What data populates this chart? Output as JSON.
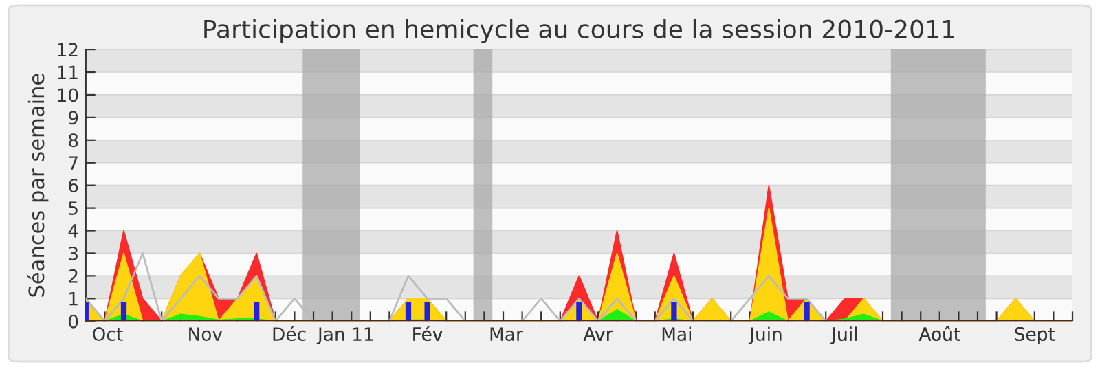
{
  "chart_data": {
    "type": "area",
    "title": "Participation en hemicycle au cours de la session 2010-2011",
    "ylabel": "Séances par semaine",
    "x": [
      "2010-09-27",
      "2010-10-04",
      "2010-10-11",
      "2010-10-18",
      "2010-10-25",
      "2010-11-01",
      "2010-11-08",
      "2010-11-15",
      "2010-11-22",
      "2010-11-29",
      "2010-12-06",
      "2010-12-13",
      "2010-12-20",
      "2010-12-27",
      "2011-01-03",
      "2011-01-10",
      "2011-01-17",
      "2011-01-24",
      "2011-01-31",
      "2011-02-07",
      "2011-02-14",
      "2011-02-21",
      "2011-02-28",
      "2011-03-07",
      "2011-03-14",
      "2011-03-21",
      "2011-03-28",
      "2011-04-04",
      "2011-04-11",
      "2011-04-18",
      "2011-04-25",
      "2011-05-02",
      "2011-05-09",
      "2011-05-16",
      "2011-05-23",
      "2011-05-30",
      "2011-06-06",
      "2011-06-13",
      "2011-06-20",
      "2011-06-27",
      "2011-07-04",
      "2011-07-11",
      "2011-07-18",
      "2011-07-25",
      "2011-08-01",
      "2011-08-08",
      "2011-08-15",
      "2011-08-22",
      "2011-08-29",
      "2011-09-05",
      "2011-09-12",
      "2011-09-19",
      "2011-09-26"
    ],
    "series": [
      {
        "color": "#ff2a2a",
        "values": [
          1,
          0,
          4,
          1,
          0,
          2,
          3,
          1,
          1,
          3,
          0,
          0,
          0,
          0,
          0,
          0,
          0,
          1,
          1,
          0,
          0,
          0,
          0,
          0,
          0,
          0,
          2,
          0,
          4,
          0,
          0,
          3,
          0,
          1,
          0,
          0,
          6,
          1,
          1,
          0,
          1,
          1,
          0,
          0,
          0,
          0,
          0,
          0,
          0,
          1,
          0,
          0,
          0
        ]
      },
      {
        "color": "#ffd510",
        "values": [
          1,
          0,
          3,
          0,
          0,
          2,
          3,
          0,
          1,
          2,
          0,
          0,
          0,
          0,
          0,
          0,
          0,
          1,
          1,
          0,
          0,
          0,
          0,
          0,
          0,
          0,
          1,
          0,
          3,
          0,
          0,
          2,
          0,
          1,
          0,
          0,
          5,
          0,
          1,
          0,
          0,
          1,
          0,
          0,
          0,
          0,
          0,
          0,
          0,
          1,
          0,
          0,
          0
        ]
      },
      {
        "color": "#22ee11",
        "values": [
          0,
          0,
          0.3,
          0,
          0,
          0.3,
          0.2,
          0.05,
          0.1,
          0.1,
          0,
          0,
          0,
          0,
          0,
          0,
          0,
          0.05,
          0.05,
          0,
          0,
          0,
          0,
          0,
          0,
          0,
          0.05,
          0,
          0.5,
          0,
          0,
          0.1,
          0,
          0,
          0,
          0,
          0.4,
          0,
          0.05,
          0,
          0.1,
          0.3,
          0,
          0,
          0,
          0,
          0,
          0,
          0,
          0.05,
          0,
          0,
          0
        ]
      },
      {
        "type": "line",
        "color": "#bbbbbb",
        "values": [
          1,
          0,
          1,
          3,
          0,
          1,
          2,
          1,
          1,
          2,
          0,
          1,
          0,
          0,
          0,
          0,
          0,
          2,
          1,
          1,
          0,
          0,
          0,
          0,
          1,
          0,
          1,
          0,
          1,
          0,
          0,
          1,
          0,
          0,
          0,
          1,
          2,
          1,
          1,
          0,
          0,
          0,
          0,
          0,
          0,
          0,
          0,
          0,
          0,
          0,
          0,
          0,
          0
        ]
      },
      {
        "type": "bar",
        "color": "#2222dd",
        "values": [
          0.85,
          0,
          0.85,
          0,
          0,
          0,
          0,
          0,
          0,
          0.85,
          0,
          0,
          0,
          0,
          0,
          0,
          0,
          0.85,
          0.85,
          0,
          0,
          0,
          0,
          0,
          0,
          0,
          0.85,
          0,
          0,
          0,
          0,
          0.85,
          0,
          0,
          0,
          0,
          0,
          0,
          0.85,
          0,
          0,
          0,
          0,
          0,
          0,
          0,
          0,
          0,
          0,
          0,
          0,
          0,
          0
        ]
      }
    ],
    "xlim": [
      "2010-09-27",
      "2011-09-26"
    ],
    "xticks": [
      {
        "value": "2010-09-27",
        "label": null
      },
      {
        "value": "2010-10-04",
        "label": null
      },
      {
        "value": "2010-10-11",
        "label": null
      },
      {
        "value": "2010-10-18",
        "label": null
      },
      {
        "value": "2010-10-25",
        "label": null
      },
      {
        "value": "2010-11-01",
        "label": null
      },
      {
        "value": "2010-11-08",
        "label": null
      },
      {
        "value": "2010-11-15",
        "label": null
      },
      {
        "value": "2010-11-22",
        "label": null
      },
      {
        "value": "2010-11-29",
        "label": null
      },
      {
        "value": "2010-12-06",
        "label": null
      },
      {
        "value": "2010-12-13",
        "label": null
      },
      {
        "value": "2010-12-20",
        "label": null
      },
      {
        "value": "2010-12-27",
        "label": null
      },
      {
        "value": "2011-01-03",
        "label": null
      },
      {
        "value": "2011-01-10",
        "label": null
      },
      {
        "value": "2011-01-17",
        "label": null
      },
      {
        "value": "2011-01-24",
        "label": null
      },
      {
        "value": "2011-01-31",
        "label": null
      },
      {
        "value": "2011-02-07",
        "label": null
      },
      {
        "value": "2011-02-14",
        "label": null
      },
      {
        "value": "2011-02-21",
        "label": null
      },
      {
        "value": "2011-02-28",
        "label": null
      },
      {
        "value": "2011-03-07",
        "label": null
      },
      {
        "value": "2011-03-14",
        "label": null
      },
      {
        "value": "2011-03-21",
        "label": null
      },
      {
        "value": "2011-03-28",
        "label": null
      },
      {
        "value": "2011-04-04",
        "label": null
      },
      {
        "value": "2011-04-11",
        "label": null
      },
      {
        "value": "2011-04-18",
        "label": null
      },
      {
        "value": "2011-04-25",
        "label": null
      },
      {
        "value": "2011-05-02",
        "label": null
      },
      {
        "value": "2011-05-09",
        "label": null
      },
      {
        "value": "2011-05-16",
        "label": null
      },
      {
        "value": "2011-05-23",
        "label": null
      },
      {
        "value": "2011-05-30",
        "label": null
      },
      {
        "value": "2011-06-06",
        "label": null
      },
      {
        "value": "2011-06-13",
        "label": null
      },
      {
        "value": "2011-06-20",
        "label": null
      },
      {
        "value": "2011-06-27",
        "label": null
      },
      {
        "value": "2011-07-04",
        "label": null
      },
      {
        "value": "2011-07-11",
        "label": null
      },
      {
        "value": "2011-07-18",
        "label": null
      },
      {
        "value": "2011-07-25",
        "label": null
      },
      {
        "value": "2011-08-01",
        "label": null
      },
      {
        "value": "2011-08-08",
        "label": null
      },
      {
        "value": "2011-08-15",
        "label": null
      },
      {
        "value": "2011-08-22",
        "label": null
      },
      {
        "value": "2011-08-29",
        "label": null
      },
      {
        "value": "2011-09-05",
        "label": null
      },
      {
        "value": "2011-09-12",
        "label": null
      },
      {
        "value": "2011-09-19",
        "label": null
      },
      {
        "value": "2011-09-26",
        "label": null
      },
      {
        "value": "2010-10-05",
        "label": "Oct"
      },
      {
        "value": "2010-11-10",
        "label": "Nov"
      },
      {
        "value": "2010-12-11",
        "label": "Déc"
      },
      {
        "value": "2011-01-01",
        "label": "Jan 11"
      },
      {
        "value": "2011-01-31",
        "label": "Fév"
      },
      {
        "value": "2011-03-01",
        "label": "Mar"
      },
      {
        "value": "2011-04-04",
        "label": "Avr"
      },
      {
        "value": "2011-05-03",
        "label": "Mai"
      },
      {
        "value": "2011-06-05",
        "label": "Juin"
      },
      {
        "value": "2011-07-04",
        "label": "Juil"
      },
      {
        "value": "2011-08-08",
        "label": "Août"
      },
      {
        "value": "2011-09-12",
        "label": "Sept"
      }
    ],
    "ylim": [
      0,
      12
    ],
    "yticks": [
      0,
      1,
      2,
      3,
      4,
      5,
      6,
      7,
      8,
      9,
      10,
      11,
      12
    ],
    "grid": "y",
    "bands": [
      {
        "axis": "x",
        "from": "2010-12-16",
        "to": "2011-01-06",
        "color": "#aaaaaa"
      },
      {
        "axis": "x",
        "from": "2011-02-17",
        "to": "2011-02-24",
        "color": "#aaaaaa"
      },
      {
        "axis": "x",
        "from": "2011-07-21",
        "to": "2011-08-25",
        "color": "#aaaaaa"
      }
    ]
  }
}
